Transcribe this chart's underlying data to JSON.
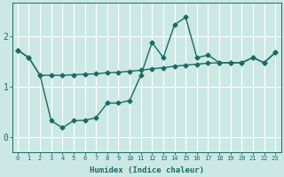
{
  "xlabel": "Humidex (Indice chaleur)",
  "bg_color": "#cce8e4",
  "grid_color": "#ffffff",
  "line_color": "#1a6b60",
  "markersize": 2.5,
  "linewidth": 1.0,
  "x": [
    0,
    1,
    2,
    3,
    4,
    5,
    6,
    7,
    8,
    9,
    10,
    11,
    12,
    13,
    14,
    15,
    16,
    17,
    18,
    19,
    20,
    21,
    22,
    23
  ],
  "line1": [
    1.72,
    1.57,
    1.22,
    0.32,
    0.18,
    0.32,
    0.33,
    0.38,
    0.67,
    0.67,
    0.72,
    1.22,
    1.87,
    1.57,
    2.22,
    2.37,
    1.57,
    1.62,
    1.47,
    1.47,
    1.47,
    1.57,
    1.47,
    1.67
  ],
  "line2": [
    1.72,
    1.57,
    1.22,
    1.22,
    1.22,
    1.23,
    1.24,
    1.25,
    1.27,
    1.28,
    1.3,
    1.32,
    1.35,
    1.37,
    1.4,
    1.42,
    1.44,
    1.46,
    1.47,
    1.47,
    1.47,
    1.57,
    1.47,
    1.67
  ],
  "ylim": [
    -0.3,
    2.65
  ],
  "xlim": [
    -0.5,
    23.5
  ],
  "yticks": [
    0,
    1,
    2
  ],
  "xticks": [
    0,
    1,
    2,
    3,
    4,
    5,
    6,
    7,
    8,
    9,
    10,
    11,
    12,
    13,
    14,
    15,
    16,
    17,
    18,
    19,
    20,
    21,
    22,
    23
  ]
}
